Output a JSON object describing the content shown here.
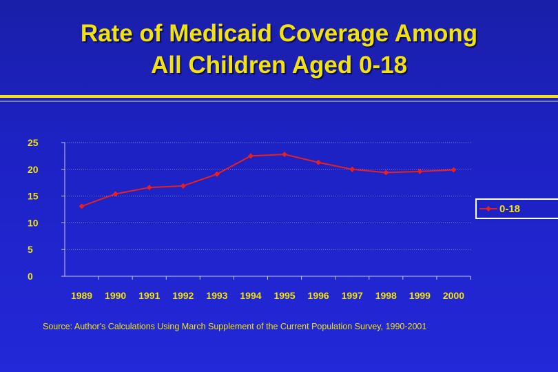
{
  "title_line1": "Rate of Medicaid Coverage Among",
  "title_line2": "All Children Aged 0-18",
  "source": "Source: Author's Calculations Using March Supplement of the Current Population Survey, 1990-2001",
  "colors": {
    "title": "#f2e20f",
    "series": "#e8201e",
    "background": "#1d22c4"
  },
  "chart_data": {
    "type": "line",
    "title": "Rate of Medicaid Coverage Among All Children Aged 0-18",
    "xlabel": "",
    "ylabel": "",
    "categories": [
      "1989",
      "1990",
      "1991",
      "1992",
      "1993",
      "1994",
      "1995",
      "1996",
      "1997",
      "1998",
      "1999",
      "2000"
    ],
    "yticks": [
      "0",
      "5",
      "10",
      "15",
      "20",
      "25"
    ],
    "ylim": [
      0,
      25
    ],
    "grid": true,
    "legend": "right",
    "series": [
      {
        "name": "0-18",
        "values": [
          13.1,
          15.4,
          16.6,
          16.9,
          19.1,
          22.5,
          22.8,
          21.3,
          20.0,
          19.4,
          19.6,
          19.9
        ]
      }
    ]
  }
}
